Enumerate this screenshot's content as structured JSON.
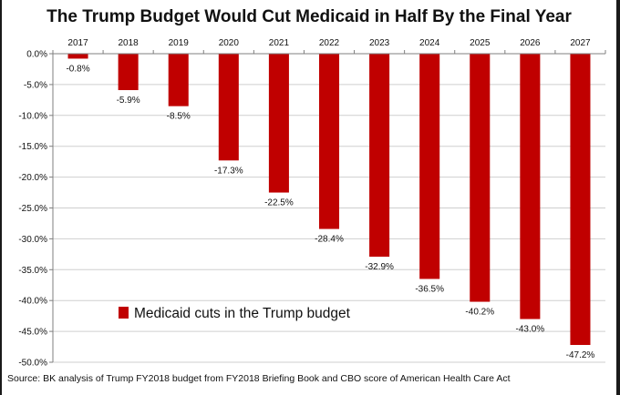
{
  "title": "The Trump Budget Would Cut Medicaid in Half By the Final Year",
  "source": "Source: BK analysis of Trump FY2018  budget from FY2018  Briefing Book and CBO score of American Health Care Act",
  "colors": {
    "bar": "#c00000",
    "grid": "#cfcfcf",
    "axis": "#7f7f7f",
    "text": "#111111"
  },
  "chart_data": {
    "type": "bar",
    "title": "The Trump Budget Would Cut Medicaid in Half By the Final Year",
    "categories": [
      "2017",
      "2018",
      "2019",
      "2020",
      "2021",
      "2022",
      "2023",
      "2024",
      "2025",
      "2026",
      "2027"
    ],
    "series": [
      {
        "name": "Medicaid cuts in the Trump budget",
        "values": [
          -0.8,
          -5.9,
          -8.5,
          -17.3,
          -22.5,
          -28.4,
          -32.9,
          -36.5,
          -40.2,
          -43.0,
          -47.2
        ]
      }
    ],
    "data_labels": [
      "-0.8%",
      "-5.9%",
      "-8.5%",
      "-17.3%",
      "-22.5%",
      "-28.4%",
      "-32.9%",
      "-36.5%",
      "-40.2%",
      "-43.0%",
      "-47.2%"
    ],
    "y_ticks": [
      0,
      -5,
      -10,
      -15,
      -20,
      -25,
      -30,
      -35,
      -40,
      -45,
      -50
    ],
    "y_tick_labels": [
      "0.0%",
      "-5.0%",
      "-10.0%",
      "-15.0%",
      "-20.0%",
      "-25.0%",
      "-30.0%",
      "-35.0%",
      "-40.0%",
      "-45.0%",
      "-50.0%"
    ],
    "ylim": [
      -50,
      0
    ],
    "xlabel": "",
    "ylabel": "",
    "grid": true,
    "legend": {
      "position": "center-left",
      "label": "Medicaid cuts in the Trump budget"
    }
  }
}
